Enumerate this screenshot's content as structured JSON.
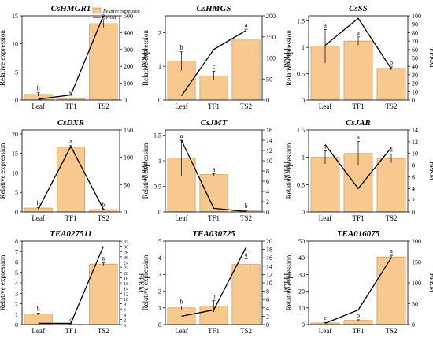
{
  "legend": {
    "bar_label": "Relative expression",
    "line_label": "FPKM"
  },
  "colors": {
    "bar_fill": "#f8c98f",
    "bar_stroke": "#b88a55",
    "line": "#000000"
  },
  "chart_data": [
    {
      "type": "bar",
      "title": "CsHMGR1",
      "categories": [
        "Leaf",
        "TF1",
        "TS2"
      ],
      "series": [
        {
          "name": "Relative expression",
          "values": [
            1.0,
            0.28,
            13.6
          ],
          "errors": [
            0.3,
            0.05,
            0.7
          ],
          "labels": [
            "b",
            "b",
            "a"
          ]
        },
        {
          "name": "FPKM",
          "values": [
            5,
            30,
            500
          ]
        }
      ],
      "ylabel": "Relative expression",
      "y2label": "FPKM",
      "ylim": [
        0,
        15
      ],
      "yticks": [
        0,
        5,
        10,
        15
      ],
      "y2lim": [
        0,
        500
      ],
      "y2ticks": [
        0,
        100,
        200,
        300,
        400,
        500
      ]
    },
    {
      "type": "bar",
      "title": "CsHMGS",
      "categories": [
        "Leaf",
        "TF1",
        "TS2"
      ],
      "series": [
        {
          "name": "Relative expression",
          "values": [
            1.15,
            0.72,
            1.78
          ],
          "errors": [
            0.28,
            0.14,
            0.32
          ],
          "labels": [
            "b",
            "c",
            "a"
          ]
        },
        {
          "name": "FPKM",
          "values": [
            10,
            120,
            165
          ]
        }
      ],
      "ylabel": "Relative expression",
      "y2label": "FPKM",
      "ylim": [
        0,
        2.5
      ],
      "yticks": [
        0,
        1,
        2
      ],
      "y2lim": [
        0,
        200
      ],
      "y2ticks": [
        0,
        50,
        100,
        150,
        200
      ]
    },
    {
      "type": "bar",
      "title": "CsSS",
      "categories": [
        "Leaf",
        "TF1",
        "TS2"
      ],
      "series": [
        {
          "name": "Relative expression",
          "values": [
            1.02,
            1.12,
            0.6
          ],
          "errors": [
            0.32,
            0.08,
            0.03
          ],
          "labels": [
            "a",
            "a",
            "b"
          ]
        },
        {
          "name": "FPKM",
          "values": [
            65,
            97,
            37
          ]
        }
      ],
      "ylabel": "Relative expression",
      "y2label": "FPKM",
      "ylim": [
        0,
        1.6
      ],
      "yticks": [
        0,
        0.5,
        1.0,
        1.5
      ],
      "y2lim": [
        0,
        100
      ],
      "y2ticks": [
        0,
        10,
        20,
        30,
        40,
        50,
        60,
        70,
        80,
        90,
        100
      ]
    },
    {
      "type": "bar",
      "title": "CsDXR",
      "categories": [
        "Leaf",
        "TF1",
        "TS2"
      ],
      "series": [
        {
          "name": "Relative expression",
          "values": [
            1.0,
            16.6,
            0.6
          ],
          "errors": [
            0.1,
            0.4,
            0.1
          ],
          "labels": [
            "b",
            "a",
            "b"
          ]
        },
        {
          "name": "FPKM",
          "values": [
            5,
            120,
            5
          ]
        }
      ],
      "ylabel": "Relative expression",
      "y2label": "FPKM",
      "ylim": [
        0,
        21
      ],
      "yticks": [
        0,
        5,
        10,
        15,
        20
      ],
      "y2lim": [
        0,
        150
      ],
      "y2ticks": [
        0,
        50,
        100,
        150
      ]
    },
    {
      "type": "bar",
      "title": "CsJMT",
      "categories": [
        "Leaf",
        "TF1",
        "TS2"
      ],
      "series": [
        {
          "name": "Relative expression",
          "values": [
            1.05,
            0.73,
            0.02
          ],
          "errors": [
            0.35,
            0.02,
            0.01
          ],
          "labels": [
            "a",
            "a",
            "b"
          ]
        },
        {
          "name": "FPKM",
          "values": [
            14,
            0.7,
            0.1
          ]
        }
      ],
      "ylabel": "Relative expression",
      "y2label": "FPKM",
      "ylim": [
        0,
        1.6
      ],
      "yticks": [
        0,
        0.5,
        1.0,
        1.5
      ],
      "y2lim": [
        0,
        16
      ],
      "y2ticks": [
        0,
        2,
        4,
        6,
        8,
        10,
        12,
        14,
        16
      ]
    },
    {
      "type": "bar",
      "title": "CsJAR",
      "categories": [
        "Leaf",
        "TF1",
        "TS2"
      ],
      "series": [
        {
          "name": "Relative expression",
          "values": [
            1.0,
            1.07,
            0.98
          ],
          "errors": [
            0.12,
            0.22,
            0.08
          ],
          "labels": [
            "a",
            "a",
            "a"
          ]
        },
        {
          "name": "FPKM",
          "values": [
            11.5,
            4,
            11
          ]
        }
      ],
      "ylabel": "Relative expression",
      "y2label": "FPKM",
      "ylim": [
        0,
        1.5
      ],
      "yticks": [
        0,
        0.5,
        1.0,
        1.5
      ],
      "y2lim": [
        0,
        14
      ],
      "y2ticks": [
        0,
        2,
        4,
        6,
        8,
        10,
        12,
        14
      ]
    },
    {
      "type": "bar",
      "title": "TEA027511",
      "categories": [
        "Leaf",
        "TF1",
        "TS2"
      ],
      "series": [
        {
          "name": "Relative expression",
          "values": [
            1.0,
            0.02,
            5.8
          ],
          "errors": [
            0.1,
            0.01,
            0.12
          ],
          "labels": [
            "b",
            "c",
            "a"
          ]
        },
        {
          "name": "FPKM",
          "values": [
            0.5,
            0.5,
            30
          ]
        }
      ],
      "ylabel": "Relative expression",
      "y2label": "FPKM",
      "ylim": [
        0,
        8
      ],
      "yticks": [
        0,
        1,
        2,
        3,
        4,
        5,
        6,
        7,
        8
      ],
      "y2lim": [
        0,
        32
      ],
      "y2ticks": [
        0,
        2,
        4,
        6,
        8,
        10,
        12,
        14,
        16,
        18,
        20,
        22,
        24,
        26,
        28,
        30,
        32
      ]
    },
    {
      "type": "bar",
      "title": "TEA030725",
      "categories": [
        "Leaf",
        "TF1",
        "TS2"
      ],
      "series": [
        {
          "name": "Relative expression",
          "values": [
            1.0,
            1.1,
            3.6
          ],
          "errors": [
            0.1,
            0.35,
            0.35
          ],
          "labels": [
            "b",
            "b",
            "a"
          ]
        },
        {
          "name": "FPKM",
          "values": [
            2,
            3.5,
            18.5
          ]
        }
      ],
      "ylabel": "Relative expression",
      "y2label": "FPKM",
      "ylim": [
        0,
        5
      ],
      "yticks": [
        0,
        1,
        2,
        3,
        4,
        5
      ],
      "y2lim": [
        0,
        20
      ],
      "y2ticks": [
        0,
        2,
        4,
        6,
        8,
        10,
        12,
        14,
        16,
        18,
        20
      ]
    },
    {
      "type": "bar",
      "title": "TEA016075",
      "categories": [
        "Leaf",
        "TF1",
        "TS2"
      ],
      "series": [
        {
          "name": "Relative expression",
          "values": [
            1.0,
            2.5,
            40.5
          ],
          "errors": [
            0.3,
            0.4,
            1.0
          ],
          "labels": [
            "c",
            "b",
            "a"
          ]
        },
        {
          "name": "FPKM",
          "values": [
            3,
            35,
            160
          ]
        }
      ],
      "ylabel": "Relative expression",
      "y2label": "FPKM",
      "ylim": [
        0,
        50
      ],
      "yticks": [
        0,
        10,
        20,
        30,
        40,
        50
      ],
      "y2lim": [
        0,
        200
      ],
      "y2ticks": [
        0,
        50,
        100,
        150,
        200
      ]
    }
  ]
}
